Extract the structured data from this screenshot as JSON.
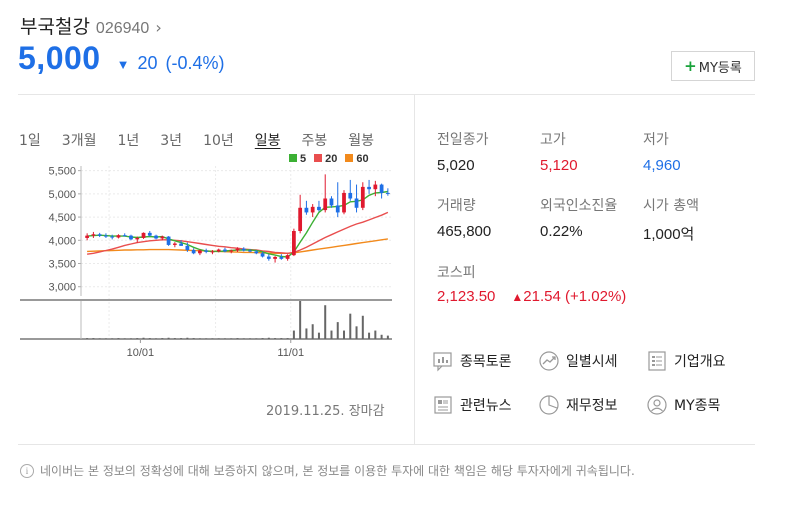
{
  "stock": {
    "name": "부국철강",
    "code": "026940",
    "price": "5,000",
    "change": "20",
    "change_pct": "(-0.4%)",
    "direction": "down"
  },
  "my_button": {
    "label": "MY등록",
    "plus": "+"
  },
  "periods": [
    "1일",
    "3개월",
    "1년",
    "3년",
    "10년",
    "일봉",
    "주봉",
    "월봉"
  ],
  "active_period": "일봉",
  "legend": [
    {
      "label": "5",
      "color": "#3cb034"
    },
    {
      "label": "20",
      "color": "#e94e4e"
    },
    {
      "label": "60",
      "color": "#f28a1c"
    }
  ],
  "chart_data": {
    "type": "candlestick",
    "y_ticks": [
      "5,500",
      "5,000",
      "4,500",
      "4,000",
      "3,500",
      "3,000"
    ],
    "ylim": [
      2800,
      5600
    ],
    "x_ticks": [
      "10/01",
      "11/01"
    ],
    "candles": [
      [
        4050,
        4150,
        4000,
        4100
      ],
      [
        4100,
        4180,
        4050,
        4130
      ],
      [
        4130,
        4160,
        4070,
        4100
      ],
      [
        4100,
        4150,
        4050,
        4080
      ],
      [
        4080,
        4120,
        4020,
        4060
      ],
      [
        4060,
        4130,
        4040,
        4110
      ],
      [
        4110,
        4150,
        4080,
        4100
      ],
      [
        4100,
        4120,
        4000,
        4020
      ],
      [
        4020,
        4080,
        3950,
        4050
      ],
      [
        4050,
        4170,
        4030,
        4160
      ],
      [
        4160,
        4200,
        4080,
        4100
      ],
      [
        4100,
        4120,
        4020,
        4040
      ],
      [
        4040,
        4100,
        4000,
        4080
      ],
      [
        4080,
        4090,
        3880,
        3900
      ],
      [
        3900,
        3960,
        3850,
        3930
      ],
      [
        3930,
        4000,
        3880,
        3880
      ],
      [
        3880,
        3950,
        3750,
        3790
      ],
      [
        3790,
        3830,
        3700,
        3720
      ],
      [
        3720,
        3800,
        3680,
        3780
      ],
      [
        3780,
        3820,
        3720,
        3750
      ],
      [
        3750,
        3790,
        3700,
        3760
      ],
      [
        3760,
        3820,
        3740,
        3800
      ],
      [
        3800,
        3840,
        3740,
        3760
      ],
      [
        3760,
        3800,
        3720,
        3780
      ],
      [
        3780,
        3850,
        3750,
        3820
      ],
      [
        3820,
        3850,
        3760,
        3780
      ],
      [
        3780,
        3810,
        3740,
        3760
      ],
      [
        3760,
        3790,
        3700,
        3720
      ],
      [
        3720,
        3750,
        3630,
        3650
      ],
      [
        3650,
        3700,
        3560,
        3600
      ],
      [
        3600,
        3660,
        3520,
        3640
      ],
      [
        3640,
        3700,
        3580,
        3600
      ],
      [
        3600,
        3700,
        3560,
        3680
      ],
      [
        3680,
        4250,
        3660,
        4200
      ],
      [
        4200,
        4980,
        4150,
        4700
      ],
      [
        4700,
        4850,
        4550,
        4600
      ],
      [
        4600,
        4780,
        4500,
        4720
      ],
      [
        4720,
        4850,
        4620,
        4650
      ],
      [
        4650,
        5420,
        4600,
        4900
      ],
      [
        4900,
        4950,
        4700,
        4750
      ],
      [
        4750,
        5250,
        4500,
        4600
      ],
      [
        4600,
        5080,
        4560,
        5020
      ],
      [
        5020,
        5300,
        4850,
        4900
      ],
      [
        4900,
        5200,
        4600,
        4700
      ],
      [
        4700,
        5250,
        4650,
        5150
      ],
      [
        5150,
        5300,
        5000,
        5100
      ],
      [
        5100,
        5280,
        4950,
        5200
      ],
      [
        5200,
        5220,
        4900,
        5020
      ],
      [
        5020,
        5120,
        4960,
        5000
      ]
    ],
    "ma5": [
      4090,
      4100,
      4110,
      4100,
      4090,
      4090,
      4090,
      4070,
      4060,
      4070,
      4080,
      4070,
      4080,
      4030,
      3990,
      3950,
      3910,
      3850,
      3800,
      3770,
      3760,
      3760,
      3770,
      3780,
      3790,
      3790,
      3790,
      3780,
      3750,
      3710,
      3680,
      3650,
      3640,
      3750,
      3960,
      4160,
      4390,
      4600,
      4710,
      4720,
      4730,
      4750,
      4830,
      4840,
      4870,
      4970,
      5020,
      5030,
      5050
    ],
    "ma20": [
      3700,
      3720,
      3750,
      3780,
      3810,
      3850,
      3890,
      3920,
      3950,
      3970,
      3990,
      4000,
      4010,
      4010,
      4000,
      3990,
      3970,
      3950,
      3930,
      3910,
      3890,
      3870,
      3860,
      3840,
      3830,
      3810,
      3800,
      3790,
      3770,
      3760,
      3740,
      3730,
      3720,
      3740,
      3790,
      3850,
      3920,
      3990,
      4060,
      4120,
      4180,
      4240,
      4300,
      4350,
      4390,
      4440,
      4490,
      4540,
      4600
    ],
    "ma60": [
      3760,
      3765,
      3770,
      3775,
      3780,
      3785,
      3790,
      3790,
      3795,
      3795,
      3800,
      3800,
      3800,
      3800,
      3795,
      3790,
      3785,
      3780,
      3775,
      3770,
      3765,
      3760,
      3755,
      3750,
      3745,
      3740,
      3740,
      3735,
      3730,
      3725,
      3720,
      3720,
      3720,
      3730,
      3750,
      3770,
      3790,
      3810,
      3830,
      3850,
      3870,
      3890,
      3910,
      3930,
      3950,
      3970,
      3990,
      4010,
      4030
    ],
    "volume": [
      2,
      2,
      1,
      1,
      1,
      2,
      1,
      1,
      2,
      3,
      2,
      1,
      2,
      3,
      2,
      2,
      3,
      2,
      1,
      1,
      1,
      1,
      1,
      1,
      2,
      1,
      1,
      1,
      2,
      3,
      2,
      2,
      2,
      20,
      90,
      25,
      35,
      15,
      80,
      20,
      40,
      20,
      60,
      30,
      55,
      15,
      20,
      10,
      8
    ],
    "up_color": "#e0192e",
    "down_color": "#1e6fe6"
  },
  "date_status": "2019.11.25. 장마감",
  "stats": {
    "prev_close_label": "전일종가",
    "prev_close": "5,020",
    "high_label": "고가",
    "high": "5,120",
    "low_label": "저가",
    "low": "4,960",
    "volume_label": "거래량",
    "volume": "465,800",
    "foreign_label": "외국인소진율",
    "foreign": "0.22%",
    "mcap_label": "시가 총액",
    "mcap": "1,000억"
  },
  "kospi": {
    "label": "코스피",
    "value": "2,123.50",
    "change": "21.54",
    "change_pct": "(+1.02%)"
  },
  "links": [
    {
      "label": "종목토론",
      "icon": "chat-icon"
    },
    {
      "label": "일별시세",
      "icon": "trend-icon"
    },
    {
      "label": "기업개요",
      "icon": "list-icon"
    },
    {
      "label": "관련뉴스",
      "icon": "news-icon"
    },
    {
      "label": "재무정보",
      "icon": "pie-icon"
    },
    {
      "label": "MY종목",
      "icon": "person-icon"
    }
  ],
  "disclaimer": "네이버는 본 정보의 정확성에 대해 보증하지 않으며, 본 정보를 이용한 투자에 대한 책임은 해당 투자자에게 귀속됩니다."
}
